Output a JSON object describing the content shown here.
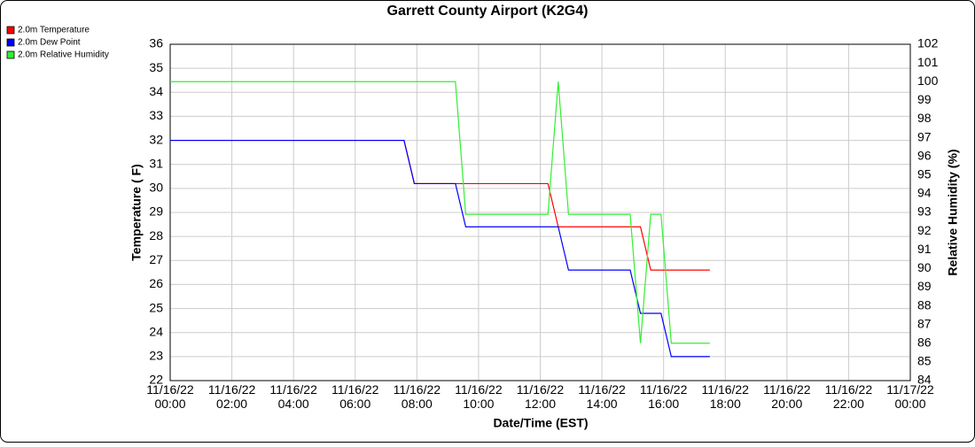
{
  "chart_data": {
    "type": "line",
    "title": "Garrett County Airport (K2G4)",
    "xlabel": "Date/Time (EST)",
    "ylabel": "Temperature ( F)",
    "y2label": "Relative Humidity (%)",
    "x": [
      "2022-11-16T00:00",
      "2022-11-16T07:35",
      "2022-11-16T07:55",
      "2022-11-16T09:15",
      "2022-11-16T09:35",
      "2022-11-16T12:15",
      "2022-11-16T12:35",
      "2022-11-16T12:55",
      "2022-11-16T14:55",
      "2022-11-16T15:15",
      "2022-11-16T15:35",
      "2022-11-16T15:55",
      "2022-11-16T16:15",
      "2022-11-16T17:30"
    ],
    "series": [
      {
        "name": "2.0m Temperature",
        "color": "#ff0000",
        "values": [
          32,
          32,
          30.2,
          30.2,
          30.2,
          30.2,
          28.4,
          28.4,
          28.4,
          28.4,
          26.6,
          26.6,
          26.6,
          26.6
        ]
      },
      {
        "name": "2.0m Dew Point",
        "color": "#0000ff",
        "values": [
          32,
          32,
          30.2,
          30.2,
          28.4,
          28.4,
          28.4,
          26.6,
          26.6,
          24.8,
          24.8,
          24.8,
          23,
          23
        ]
      },
      {
        "name": "2.0m Relative Humidity",
        "color": "#33ee33",
        "axis": "y2",
        "values": [
          100,
          100,
          100,
          100,
          92.9,
          92.9,
          100,
          92.9,
          92.9,
          86,
          92.9,
          92.9,
          86,
          86
        ]
      }
    ],
    "xlim": [
      "2022-11-16T00:00",
      "2022-11-17T00:00"
    ],
    "xticks": [
      {
        "value": "2022-11-16T00:00",
        "label": "11/16/22 00:00"
      },
      {
        "value": "2022-11-16T02:00",
        "label": "11/16/22 02:00"
      },
      {
        "value": "2022-11-16T04:00",
        "label": "11/16/22 04:00"
      },
      {
        "value": "2022-11-16T06:00",
        "label": "11/16/22 06:00"
      },
      {
        "value": "2022-11-16T08:00",
        "label": "11/16/22 08:00"
      },
      {
        "value": "2022-11-16T10:00",
        "label": "11/16/22 10:00"
      },
      {
        "value": "2022-11-16T12:00",
        "label": "11/16/22 12:00"
      },
      {
        "value": "2022-11-16T14:00",
        "label": "11/16/22 14:00"
      },
      {
        "value": "2022-11-16T16:00",
        "label": "11/16/22 16:00"
      },
      {
        "value": "2022-11-16T18:00",
        "label": "11/16/22 18:00"
      },
      {
        "value": "2022-11-16T20:00",
        "label": "11/16/22 20:00"
      },
      {
        "value": "2022-11-16T22:00",
        "label": "11/16/22 22:00"
      },
      {
        "value": "2022-11-17T00:00",
        "label": "11/17/22 00:00"
      }
    ],
    "ylim": [
      22,
      36
    ],
    "yticks": [
      22,
      23,
      24,
      25,
      26,
      27,
      28,
      29,
      30,
      31,
      32,
      33,
      34,
      35,
      36
    ],
    "y2lim": [
      84,
      102
    ],
    "y2ticks": [
      84,
      85,
      86,
      87,
      88,
      89,
      90,
      91,
      92,
      93,
      94,
      95,
      96,
      97,
      98,
      99,
      100,
      101,
      102
    ],
    "grid": true,
    "legend": "top-left"
  }
}
